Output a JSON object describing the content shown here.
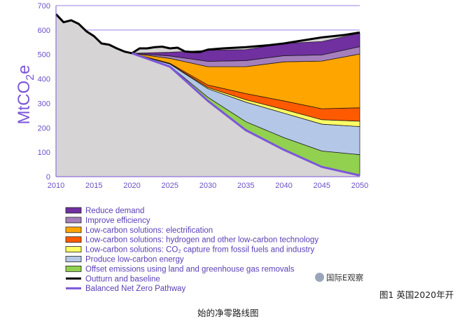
{
  "chart_data": {
    "type": "area",
    "ylabel": "MtCO2e",
    "ylim": [
      0,
      700
    ],
    "xlim": [
      2010,
      2050
    ],
    "x_ticks": [
      "2010",
      "2015",
      "2020",
      "2025",
      "2030",
      "2035",
      "2040",
      "2045",
      "2050"
    ],
    "y_ticks": [
      "0",
      "100",
      "200",
      "300",
      "400",
      "500",
      "600",
      "700"
    ],
    "x": [
      2020,
      2025,
      2030,
      2035,
      2040,
      2045,
      2050
    ],
    "series": [
      {
        "name": "Balanced Net Zero Pathway",
        "kind": "line",
        "color": "#7b55d9",
        "values": [
          505,
          450,
          310,
          190,
          110,
          40,
          5
        ]
      },
      {
        "name": "Offset emissions using land and greenhouse gas removals",
        "kind": "band",
        "color": "#92d050",
        "values": [
          0,
          3,
          15,
          35,
          50,
          65,
          85
        ]
      },
      {
        "name": "Produce low-carbon energy",
        "kind": "band",
        "color": "#b4c7e7",
        "values": [
          0,
          8,
          35,
          80,
          100,
          110,
          115
        ]
      },
      {
        "name": "Low-carbon solutions: CO2 capture from fossil fuels and industry",
        "kind": "band",
        "color": "#ffff66",
        "values": [
          0,
          1,
          5,
          10,
          15,
          18,
          22
        ]
      },
      {
        "name": "Low-carbon solutions: hydrogen and other low-carbon technology",
        "kind": "band",
        "color": "#ff5a00",
        "values": [
          0,
          2,
          10,
          25,
          35,
          45,
          55
        ]
      },
      {
        "name": "Low-carbon solutions: electrification",
        "kind": "band",
        "color": "#ffa500",
        "values": [
          0,
          20,
          75,
          110,
          160,
          195,
          220
        ]
      },
      {
        "name": "Improve efficiency",
        "kind": "band",
        "color": "#a57fbc",
        "values": [
          0,
          10,
          22,
          25,
          25,
          25,
          30
        ]
      },
      {
        "name": "Reduce demand",
        "kind": "band",
        "color": "#7030a0",
        "values": [
          0,
          15,
          45,
          45,
          50,
          55,
          55
        ]
      },
      {
        "name": "Outturn and baseline",
        "kind": "line",
        "color": "#000000",
        "x": [
          2010,
          2011,
          2012,
          2013,
          2014,
          2015,
          2016,
          2017,
          2018,
          2019,
          2020,
          2021,
          2022,
          2023,
          2024,
          2025,
          2026,
          2027,
          2028,
          2029,
          2030,
          2032,
          2035,
          2038,
          2040,
          2042,
          2045,
          2048,
          2050
        ],
        "values": [
          665,
          632,
          640,
          625,
          595,
          575,
          545,
          540,
          525,
          512,
          505,
          525,
          525,
          530,
          532,
          525,
          528,
          512,
          510,
          510,
          520,
          525,
          530,
          538,
          545,
          555,
          570,
          580,
          590
        ]
      }
    ],
    "legend": {
      "placement": "bottom-left",
      "order": [
        "Reduce demand",
        "Improve efficiency",
        "Low-carbon solutions: electrification",
        "Low-carbon solutions: hydrogen and other low-carbon technology",
        "Low-carbon solutions: CO2 capture from fossil fuels and industry",
        "Produce low-carbon energy",
        "Offset emissions using land and greenhouse gas removals",
        "Outturn and baseline",
        "Balanced Net Zero Pathway"
      ],
      "labels": [
        "Reduce demand",
        "Improve efficiency",
        "Low-carbon solutions: electrification",
        "Low-carbon solutions: hydrogen and other low-carbon technology",
        "Low-carbon solutions: CO₂ capture from fossil fuels and industry",
        "Produce low-carbon energy",
        "Offset emissions using land and greenhouse gas removals",
        "Outturn and baseline",
        "Balanced Net Zero Pathway"
      ]
    },
    "grid": true,
    "grid_color": "#9b7fe0",
    "background_area_color": "#d6d4d4"
  },
  "caption": {
    "line1": "图1   英国2020年开",
    "line2": "始的净零路线图"
  },
  "watermark": {
    "text": "国际E观察"
  }
}
